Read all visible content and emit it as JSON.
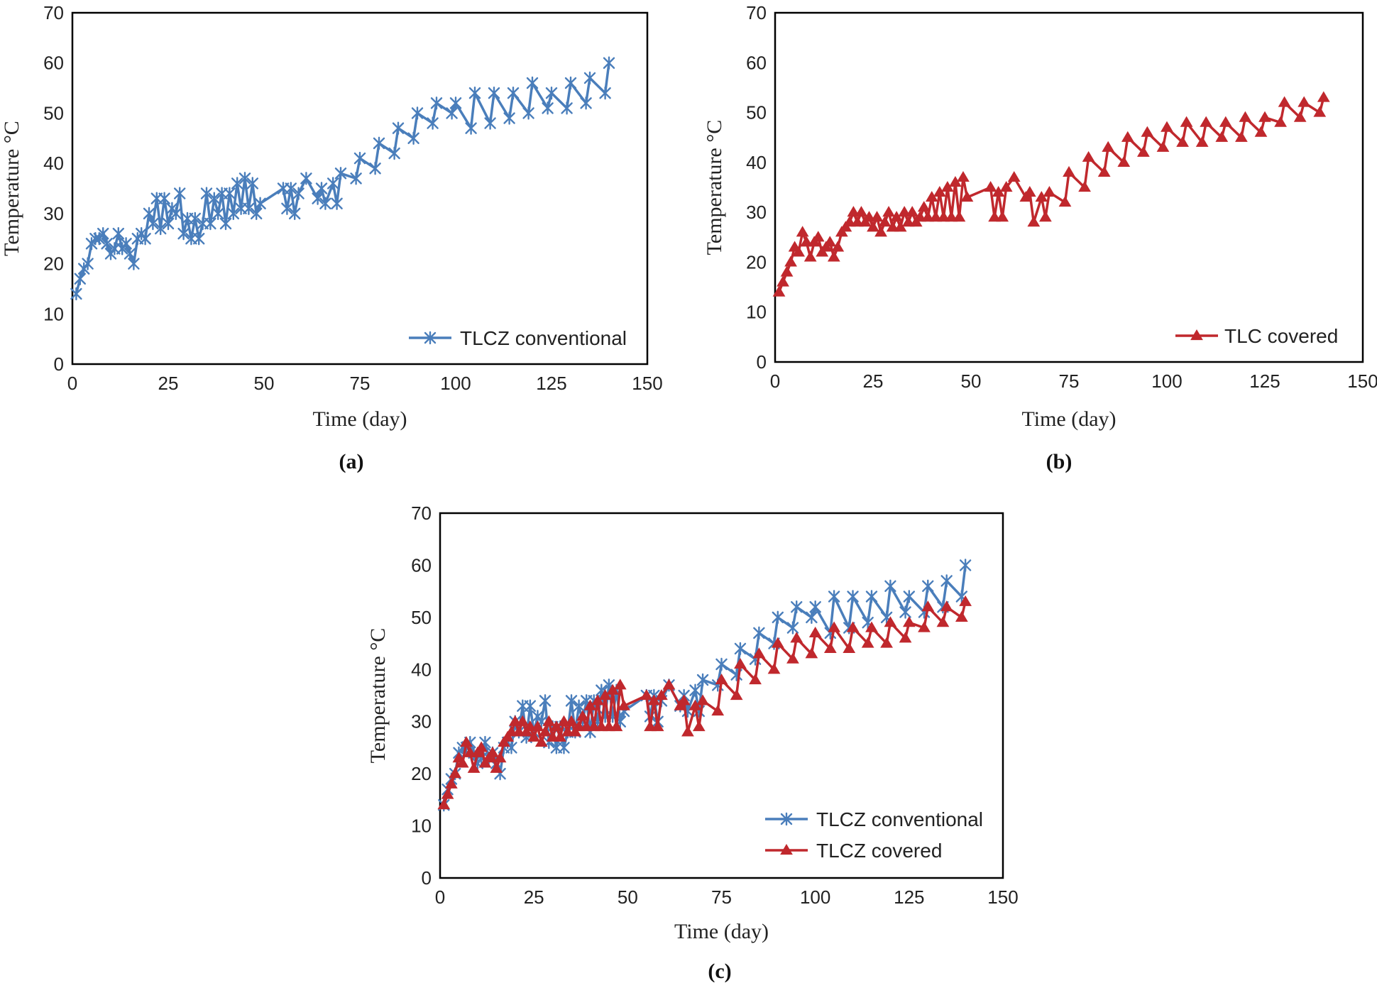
{
  "colors": {
    "blue": "#4a7ebb",
    "red": "#c0282d",
    "frame": "#000000"
  },
  "chart_data": [
    {
      "type": "line",
      "panel_label": "(a)",
      "xlabel": "Time (day)",
      "ylabel": "Temperature °C",
      "xlim": [
        0,
        150
      ],
      "ylim": [
        0,
        70
      ],
      "xticks": [
        "0",
        "25",
        "50",
        "75",
        "100",
        "125",
        "150"
      ],
      "yticks": [
        "0",
        "10",
        "20",
        "30",
        "40",
        "50",
        "60",
        "70"
      ],
      "legend_position": "bottom-right",
      "series": [
        {
          "name": "TLCZ conventional",
          "color": "#4a7ebb",
          "marker": "asterisk",
          "x": [
            1,
            2,
            3,
            4,
            5,
            6,
            7,
            8,
            9,
            10,
            11,
            12,
            13,
            14,
            15,
            16,
            17,
            18,
            19,
            20,
            21,
            22,
            23,
            24,
            25,
            26,
            27,
            28,
            29,
            30,
            31,
            32,
            33,
            34,
            35,
            36,
            37,
            38,
            39,
            40,
            41,
            42,
            43,
            44,
            45,
            46,
            47,
            48,
            49,
            55,
            56,
            57,
            58,
            59,
            61,
            64,
            65,
            66,
            68,
            69,
            70,
            74,
            75,
            79,
            80,
            84,
            85,
            89,
            90,
            94,
            95,
            99,
            100,
            104,
            105,
            109,
            110,
            114,
            115,
            119,
            120,
            124,
            125,
            129,
            130,
            134,
            135,
            139,
            140
          ],
          "y": [
            14,
            17,
            19,
            20,
            24,
            25,
            25,
            26,
            24,
            22,
            23,
            26,
            23,
            24,
            22,
            20,
            25,
            26,
            25,
            30,
            28,
            33,
            27,
            33,
            28,
            31,
            30,
            34,
            26,
            29,
            25,
            29,
            25,
            28,
            34,
            28,
            33,
            30,
            34,
            28,
            34,
            30,
            36,
            31,
            37,
            31,
            36,
            30,
            32,
            35,
            31,
            35,
            30,
            34,
            37,
            33,
            35,
            32,
            36,
            32,
            38,
            37,
            41,
            39,
            44,
            42,
            47,
            45,
            50,
            48,
            52,
            50,
            52,
            47,
            54,
            48,
            54,
            49,
            54,
            50,
            56,
            51,
            54,
            51,
            56,
            52,
            57,
            54,
            60
          ]
        }
      ]
    },
    {
      "type": "line",
      "panel_label": "(b)",
      "xlabel": "Time (day)",
      "ylabel": "Temperature °C",
      "xlim": [
        0,
        150
      ],
      "ylim": [
        0,
        70
      ],
      "xticks": [
        "0",
        "25",
        "50",
        "75",
        "100",
        "125",
        "150"
      ],
      "yticks": [
        "0",
        "10",
        "20",
        "30",
        "40",
        "50",
        "60",
        "70"
      ],
      "legend_position": "bottom-right",
      "series": [
        {
          "name": "TLC covered",
          "color": "#c0282d",
          "marker": "triangle",
          "x": [
            1,
            2,
            3,
            4,
            5,
            6,
            7,
            8,
            9,
            10,
            11,
            12,
            13,
            14,
            15,
            16,
            17,
            18,
            19,
            20,
            21,
            22,
            23,
            24,
            25,
            26,
            27,
            28,
            29,
            30,
            31,
            32,
            33,
            34,
            35,
            36,
            37,
            38,
            39,
            40,
            41,
            42,
            43,
            44,
            45,
            46,
            47,
            48,
            49,
            55,
            56,
            57,
            58,
            59,
            61,
            64,
            65,
            66,
            68,
            69,
            70,
            74,
            75,
            79,
            80,
            84,
            85,
            89,
            90,
            94,
            95,
            99,
            100,
            104,
            105,
            109,
            110,
            114,
            115,
            119,
            120,
            124,
            125,
            129,
            130,
            134,
            135,
            139,
            140
          ],
          "y": [
            14,
            16,
            18,
            20,
            23,
            22,
            26,
            24,
            21,
            24,
            25,
            22,
            23,
            24,
            21,
            23,
            26,
            27,
            28,
            30,
            28,
            30,
            28,
            29,
            27,
            29,
            26,
            28,
            30,
            27,
            29,
            27,
            30,
            28,
            30,
            28,
            29,
            31,
            29,
            33,
            29,
            34,
            29,
            35,
            29,
            36,
            29,
            37,
            33,
            35,
            29,
            34,
            29,
            35,
            37,
            33,
            34,
            28,
            33,
            29,
            34,
            32,
            38,
            35,
            41,
            38,
            43,
            40,
            45,
            42,
            46,
            43,
            47,
            44,
            48,
            44,
            48,
            45,
            48,
            45,
            49,
            46,
            49,
            48,
            52,
            49,
            52,
            50,
            53
          ]
        }
      ]
    },
    {
      "type": "line",
      "panel_label": "(c)",
      "xlabel": "Time (day)",
      "ylabel": "Temperature °C",
      "xlim": [
        0,
        150
      ],
      "ylim": [
        0,
        70
      ],
      "xticks": [
        "0",
        "25",
        "50",
        "75",
        "100",
        "125",
        "150"
      ],
      "yticks": [
        "0",
        "10",
        "20",
        "30",
        "40",
        "50",
        "60",
        "70"
      ],
      "legend_position": "bottom-right",
      "series": [
        {
          "name": "TLCZ conventional",
          "color": "#4a7ebb",
          "marker": "asterisk",
          "x": [
            1,
            2,
            3,
            4,
            5,
            6,
            7,
            8,
            9,
            10,
            11,
            12,
            13,
            14,
            15,
            16,
            17,
            18,
            19,
            20,
            21,
            22,
            23,
            24,
            25,
            26,
            27,
            28,
            29,
            30,
            31,
            32,
            33,
            34,
            35,
            36,
            37,
            38,
            39,
            40,
            41,
            42,
            43,
            44,
            45,
            46,
            47,
            48,
            49,
            55,
            56,
            57,
            58,
            59,
            61,
            64,
            65,
            66,
            68,
            69,
            70,
            74,
            75,
            79,
            80,
            84,
            85,
            89,
            90,
            94,
            95,
            99,
            100,
            104,
            105,
            109,
            110,
            114,
            115,
            119,
            120,
            124,
            125,
            129,
            130,
            134,
            135,
            139,
            140
          ],
          "y": [
            14,
            17,
            19,
            20,
            24,
            25,
            25,
            26,
            24,
            22,
            23,
            26,
            23,
            24,
            22,
            20,
            25,
            26,
            25,
            30,
            28,
            33,
            27,
            33,
            28,
            31,
            30,
            34,
            26,
            29,
            25,
            29,
            25,
            28,
            34,
            28,
            33,
            30,
            34,
            28,
            34,
            30,
            36,
            31,
            37,
            31,
            36,
            30,
            32,
            35,
            31,
            35,
            30,
            34,
            37,
            33,
            35,
            32,
            36,
            32,
            38,
            37,
            41,
            39,
            44,
            42,
            47,
            45,
            50,
            48,
            52,
            50,
            52,
            47,
            54,
            48,
            54,
            49,
            54,
            50,
            56,
            51,
            54,
            51,
            56,
            52,
            57,
            54,
            60
          ]
        },
        {
          "name": "TLCZ covered",
          "color": "#c0282d",
          "marker": "triangle",
          "x": [
            1,
            2,
            3,
            4,
            5,
            6,
            7,
            8,
            9,
            10,
            11,
            12,
            13,
            14,
            15,
            16,
            17,
            18,
            19,
            20,
            21,
            22,
            23,
            24,
            25,
            26,
            27,
            28,
            29,
            30,
            31,
            32,
            33,
            34,
            35,
            36,
            37,
            38,
            39,
            40,
            41,
            42,
            43,
            44,
            45,
            46,
            47,
            48,
            49,
            55,
            56,
            57,
            58,
            59,
            61,
            64,
            65,
            66,
            68,
            69,
            70,
            74,
            75,
            79,
            80,
            84,
            85,
            89,
            90,
            94,
            95,
            99,
            100,
            104,
            105,
            109,
            110,
            114,
            115,
            119,
            120,
            124,
            125,
            129,
            130,
            134,
            135,
            139,
            140
          ],
          "y": [
            14,
            16,
            18,
            20,
            23,
            22,
            26,
            24,
            21,
            24,
            25,
            22,
            23,
            24,
            21,
            23,
            26,
            27,
            28,
            30,
            28,
            30,
            28,
            29,
            27,
            29,
            26,
            28,
            30,
            27,
            29,
            27,
            30,
            28,
            30,
            28,
            29,
            31,
            29,
            33,
            29,
            34,
            29,
            35,
            29,
            36,
            29,
            37,
            33,
            35,
            29,
            34,
            29,
            35,
            37,
            33,
            34,
            28,
            33,
            29,
            34,
            32,
            38,
            35,
            41,
            38,
            43,
            40,
            45,
            42,
            46,
            43,
            47,
            44,
            48,
            44,
            48,
            45,
            48,
            45,
            49,
            46,
            49,
            48,
            52,
            49,
            52,
            50,
            53
          ]
        }
      ]
    }
  ]
}
